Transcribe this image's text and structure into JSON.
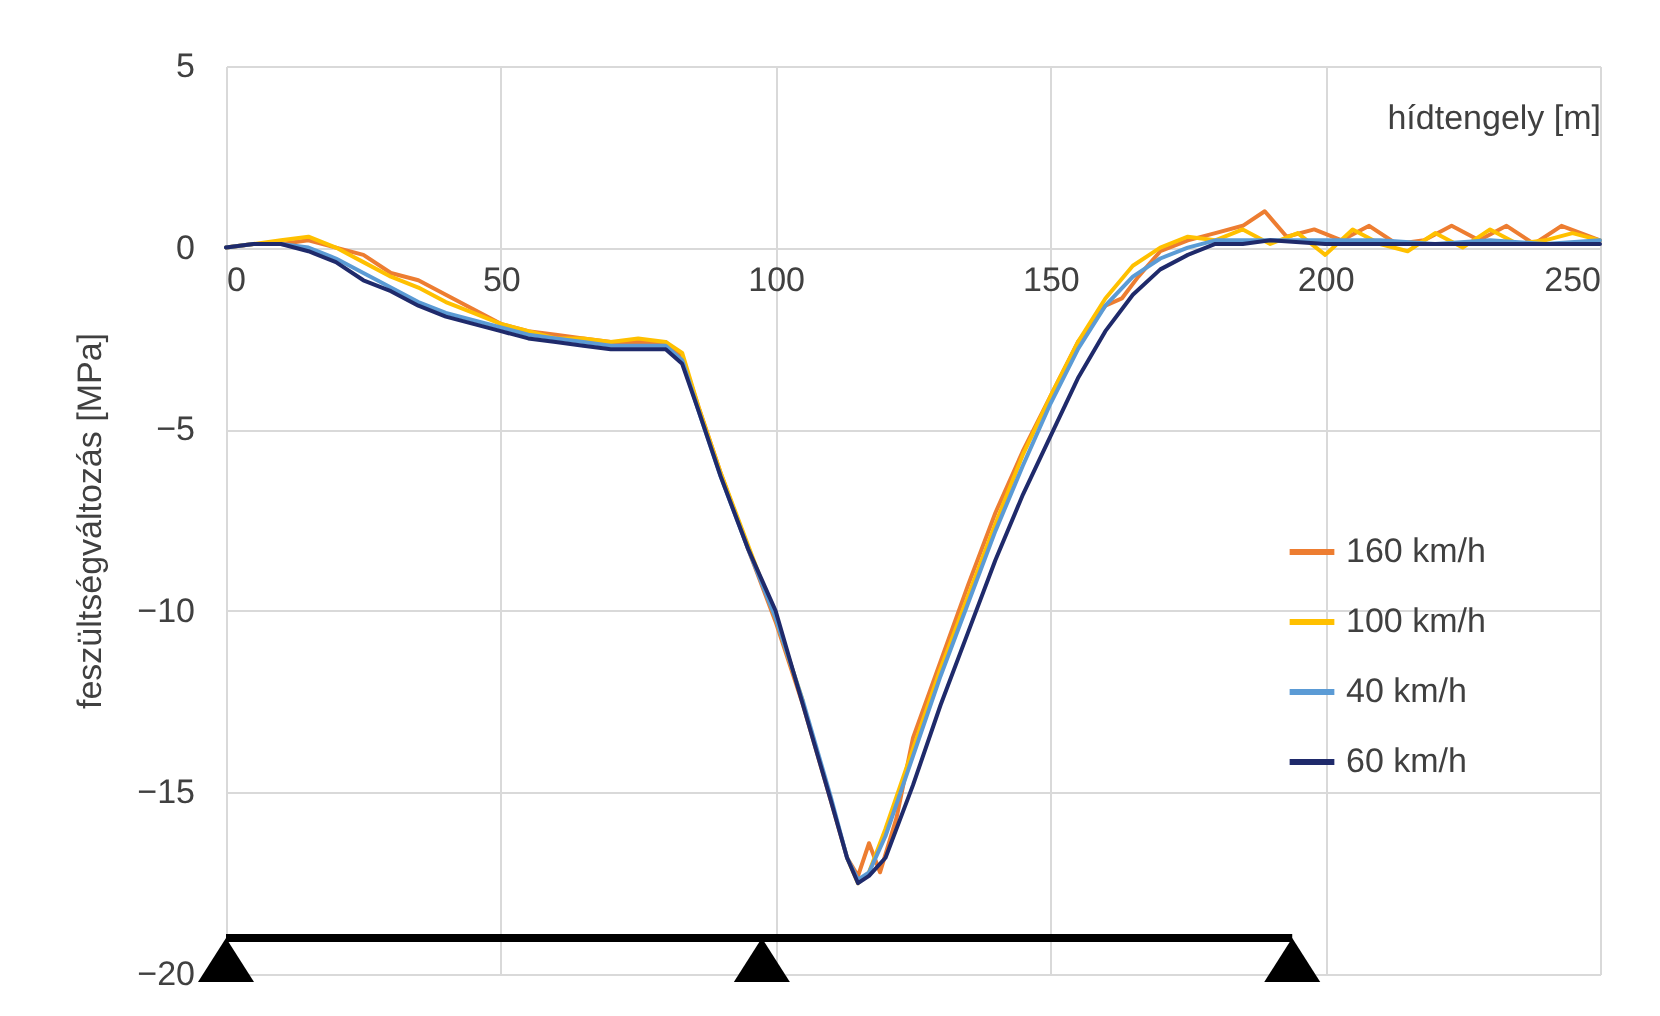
{
  "chart_data": {
    "type": "line",
    "xlabel": "hídtengely [m]",
    "ylabel": "feszültségváltozás  [MPa]",
    "xlim": [
      0,
      250
    ],
    "xticks": [
      0,
      50,
      100,
      150,
      200,
      250
    ],
    "ylim": [
      -20,
      5
    ],
    "yticks": [
      -20,
      -15,
      -10,
      -5,
      0,
      5
    ],
    "grid": true,
    "legend": "right",
    "line_style": "solid",
    "marker": "none",
    "series": [
      {
        "name": "160 km/h",
        "color": "#ed7d31",
        "x": [
          0,
          5,
          10,
          15,
          20,
          25,
          30,
          35,
          40,
          45,
          50,
          55,
          60,
          65,
          70,
          75,
          80,
          83,
          86,
          90,
          95,
          100,
          105,
          110,
          113,
          115,
          117,
          119,
          122,
          125,
          130,
          135,
          140,
          145,
          150,
          155,
          160,
          163,
          166,
          170,
          175,
          180,
          185,
          189,
          193,
          198,
          203,
          208,
          213,
          218,
          223,
          228,
          233,
          238,
          243,
          250
        ],
        "values": [
          0,
          0.1,
          0.1,
          0.2,
          0,
          -0.2,
          -0.7,
          -0.9,
          -1.3,
          -1.7,
          -2.1,
          -2.3,
          -2.4,
          -2.5,
          -2.6,
          -2.6,
          -2.6,
          -3,
          -4.4,
          -6.2,
          -8.3,
          -10.3,
          -12.6,
          -15.2,
          -16.8,
          -17.3,
          -16.4,
          -17.2,
          -15.7,
          -13.5,
          -11.4,
          -9.3,
          -7.3,
          -5.6,
          -4.1,
          -2.6,
          -1.6,
          -1.4,
          -0.8,
          -0.1,
          0.2,
          0.4,
          0.6,
          1,
          0.3,
          0.5,
          0.2,
          0.6,
          0.1,
          0.2,
          0.6,
          0.2,
          0.6,
          0.1,
          0.6,
          0.2
        ]
      },
      {
        "name": "100 km/h",
        "color": "#ffc000",
        "x": [
          0,
          5,
          10,
          15,
          20,
          25,
          30,
          35,
          40,
          45,
          50,
          55,
          60,
          65,
          70,
          75,
          80,
          83,
          86,
          90,
          95,
          100,
          105,
          110,
          113,
          115,
          117,
          120,
          125,
          130,
          135,
          140,
          145,
          150,
          155,
          160,
          165,
          170,
          175,
          180,
          185,
          190,
          195,
          200,
          205,
          210,
          215,
          220,
          225,
          230,
          235,
          240,
          245,
          250
        ],
        "values": [
          0,
          0.1,
          0.2,
          0.3,
          0,
          -0.4,
          -0.8,
          -1.1,
          -1.5,
          -1.8,
          -2.1,
          -2.3,
          -2.5,
          -2.5,
          -2.6,
          -2.5,
          -2.6,
          -2.9,
          -4.4,
          -6.2,
          -8.2,
          -10.2,
          -12.5,
          null,
          -16.8,
          -17.5,
          -17.2,
          -16,
          -13.8,
          -11.6,
          -9.6,
          -7.6,
          -5.7,
          -4.1,
          -2.6,
          -1.4,
          -0.5,
          0,
          0.3,
          0.2,
          0.5,
          0.1,
          0.4,
          -0.2,
          0.5,
          0.1,
          -0.1,
          0.4,
          0,
          0.5,
          0.1,
          0.2,
          0.4,
          0.2
        ]
      },
      {
        "name": "40 km/h",
        "color": "#5b9bd5",
        "x": [
          0,
          5,
          10,
          15,
          20,
          25,
          30,
          35,
          40,
          45,
          50,
          55,
          60,
          65,
          70,
          75,
          80,
          83,
          86,
          90,
          95,
          100,
          105,
          110,
          113,
          115,
          117,
          120,
          125,
          130,
          135,
          140,
          145,
          150,
          155,
          160,
          165,
          170,
          175,
          180,
          190,
          200,
          210,
          220,
          230,
          240,
          250
        ],
        "values": [
          0,
          0.1,
          0.1,
          0,
          -0.3,
          -0.7,
          -1.1,
          -1.5,
          -1.8,
          -2,
          -2.2,
          -2.4,
          -2.5,
          -2.6,
          -2.7,
          -2.7,
          -2.7,
          -3.1,
          -4.5,
          -6.3,
          -8.3,
          -10.2,
          -12.5,
          -15.1,
          -16.8,
          -17.4,
          -17.2,
          -16.2,
          -14,
          -11.8,
          -9.8,
          -7.8,
          -6,
          -4.3,
          -2.8,
          -1.6,
          -0.8,
          -0.3,
          0,
          0.2,
          0.2,
          0.2,
          0.2,
          0.1,
          0.2,
          0.1,
          0.2
        ]
      },
      {
        "name": "60 km/h",
        "color": "#1f2a6b",
        "x": [
          0,
          5,
          10,
          15,
          20,
          25,
          30,
          35,
          40,
          45,
          50,
          55,
          60,
          65,
          70,
          75,
          80,
          83,
          86,
          90,
          95,
          100,
          105,
          110,
          113,
          115,
          117,
          120,
          125,
          130,
          135,
          140,
          145,
          150,
          155,
          160,
          165,
          170,
          175,
          180,
          185,
          190,
          200,
          210,
          220,
          230,
          240,
          250
        ],
        "values": [
          0,
          0.1,
          0.1,
          -0.1,
          -0.4,
          -0.9,
          -1.2,
          -1.6,
          -1.9,
          -2.1,
          -2.3,
          -2.5,
          -2.6,
          -2.7,
          -2.8,
          -2.8,
          -2.8,
          -3.2,
          -4.5,
          -6.3,
          -8.3,
          -10,
          -12.6,
          -15.2,
          -16.8,
          -17.5,
          -17.3,
          -16.8,
          -14.8,
          -12.6,
          -10.6,
          -8.6,
          -6.8,
          -5.2,
          -3.6,
          -2.3,
          -1.3,
          -0.6,
          -0.2,
          0.1,
          0.1,
          0.2,
          0.1,
          0.1,
          0.1,
          0.1,
          0.1,
          0.1
        ]
      }
    ]
  }
}
